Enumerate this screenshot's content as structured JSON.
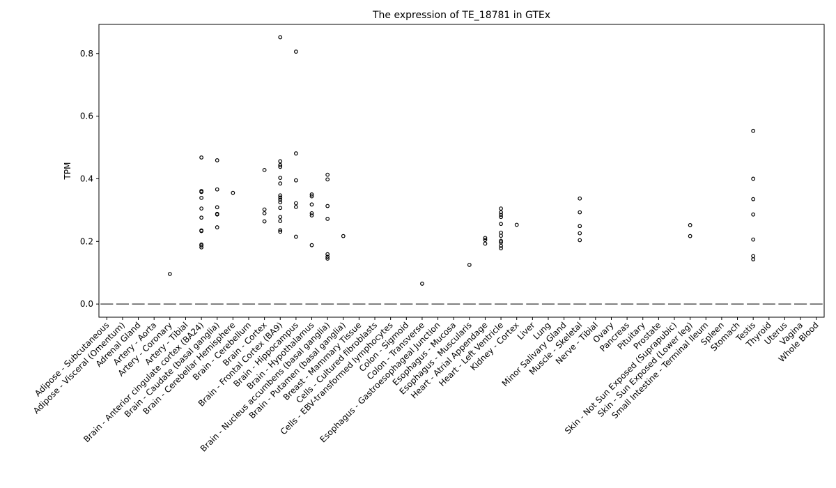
{
  "chart_data": {
    "type": "box",
    "title": "The expression of TE_18781 in GTEx",
    "xlabel": "",
    "ylabel": "TPM",
    "ylim": [
      -0.042,
      0.893
    ],
    "yticks": [
      "0.0",
      "0.2",
      "0.4",
      "0.6",
      "0.8"
    ],
    "grid": false,
    "categories": [
      "Adipose - Subcutaneous",
      "Adipose - Visceral (Omentum)",
      "Adrenal Gland",
      "Artery - Aorta",
      "Artery - Coronary",
      "Artery - Tibial",
      "Brain - Anterior cingulate cortex (BA24)",
      "Brain - Caudate (basal ganglia)",
      "Brain - Cerebellar Hemisphere",
      "Brain - Cerebellum",
      "Brain - Cortex",
      "Brain - Frontal Cortex (BA9)",
      "Brain - Hippocampus",
      "Brain - Hypothalamus",
      "Brain - Nucleus accumbens (basal ganglia)",
      "Brain - Putamen (basal ganglia)",
      "Breast - Mammary Tissue",
      "Cells - Cultured fibroblasts",
      "Cells - EBV-transformed lymphocytes",
      "Colon - Sigmoid",
      "Colon - Transverse",
      "Esophagus - Gastroesophageal Junction",
      "Esophagus - Mucosa",
      "Esophagus - Muscularis",
      "Heart - Atrial Appendage",
      "Heart - Left Ventricle",
      "Kidney - Cortex",
      "Liver",
      "Lung",
      "Minor Salivary Gland",
      "Muscle - Skeletal",
      "Nerve - Tibial",
      "Ovary",
      "Pancreas",
      "Pituitary",
      "Prostate",
      "Skin - Not Sun Exposed (Suprapubic)",
      "Skin - Sun Exposed (Lower leg)",
      "Small Intestine - Terminal Ileum",
      "Spleen",
      "Stomach",
      "Testis",
      "Thyroid",
      "Uterus",
      "Vagina",
      "Whole Blood"
    ],
    "medians": [
      0,
      0,
      0,
      0,
      0,
      0,
      0,
      0,
      0,
      0,
      0,
      0,
      0,
      0,
      0,
      0,
      0,
      0,
      0,
      0,
      0,
      0,
      0,
      0,
      0,
      0,
      0,
      0,
      0,
      0,
      0,
      0,
      0,
      0,
      0,
      0,
      0,
      0,
      0,
      0,
      0,
      0,
      0,
      0,
      0,
      0
    ],
    "outliers": [
      [],
      [],
      [],
      [],
      [
        0.096
      ],
      [],
      [
        0.468,
        0.361,
        0.358,
        0.339,
        0.305,
        0.276,
        0.235,
        0.233,
        0.19,
        0.187,
        0.181
      ],
      [
        0.459,
        0.366,
        0.309,
        0.288,
        0.286,
        0.245
      ],
      [
        0.355
      ],
      [],
      [
        0.428,
        0.302,
        0.29,
        0.264
      ],
      [
        0.852,
        0.456,
        0.444,
        0.438,
        0.403,
        0.385,
        0.347,
        0.34,
        0.333,
        0.325,
        0.307,
        0.278,
        0.265,
        0.236,
        0.231
      ],
      [
        0.806,
        0.481,
        0.395,
        0.322,
        0.31,
        0.215
      ],
      [
        0.35,
        0.344,
        0.318,
        0.29,
        0.283,
        0.188
      ],
      [
        0.413,
        0.398,
        0.313,
        0.272,
        0.159,
        0.151,
        0.145
      ],
      [
        0.217
      ],
      [],
      [],
      [],
      [],
      [
        0.065
      ],
      [],
      [],
      [
        0.125
      ],
      [
        0.211,
        0.205,
        0.193
      ],
      [
        0.305,
        0.293,
        0.285,
        0.278,
        0.256,
        0.228,
        0.218,
        0.202,
        0.197,
        0.186,
        0.178
      ],
      [
        0.253
      ],
      [],
      [],
      [],
      [
        0.337,
        0.293,
        0.249,
        0.226,
        0.204
      ],
      [],
      [],
      [],
      [],
      [],
      [],
      [
        0.252,
        0.217
      ],
      [],
      [],
      [],
      [
        0.553,
        0.4,
        0.335,
        0.286,
        0.206,
        0.153,
        0.143
      ],
      [],
      [],
      [],
      []
    ],
    "colors": {
      "median": "#555555",
      "outlier": "#000000"
    }
  }
}
